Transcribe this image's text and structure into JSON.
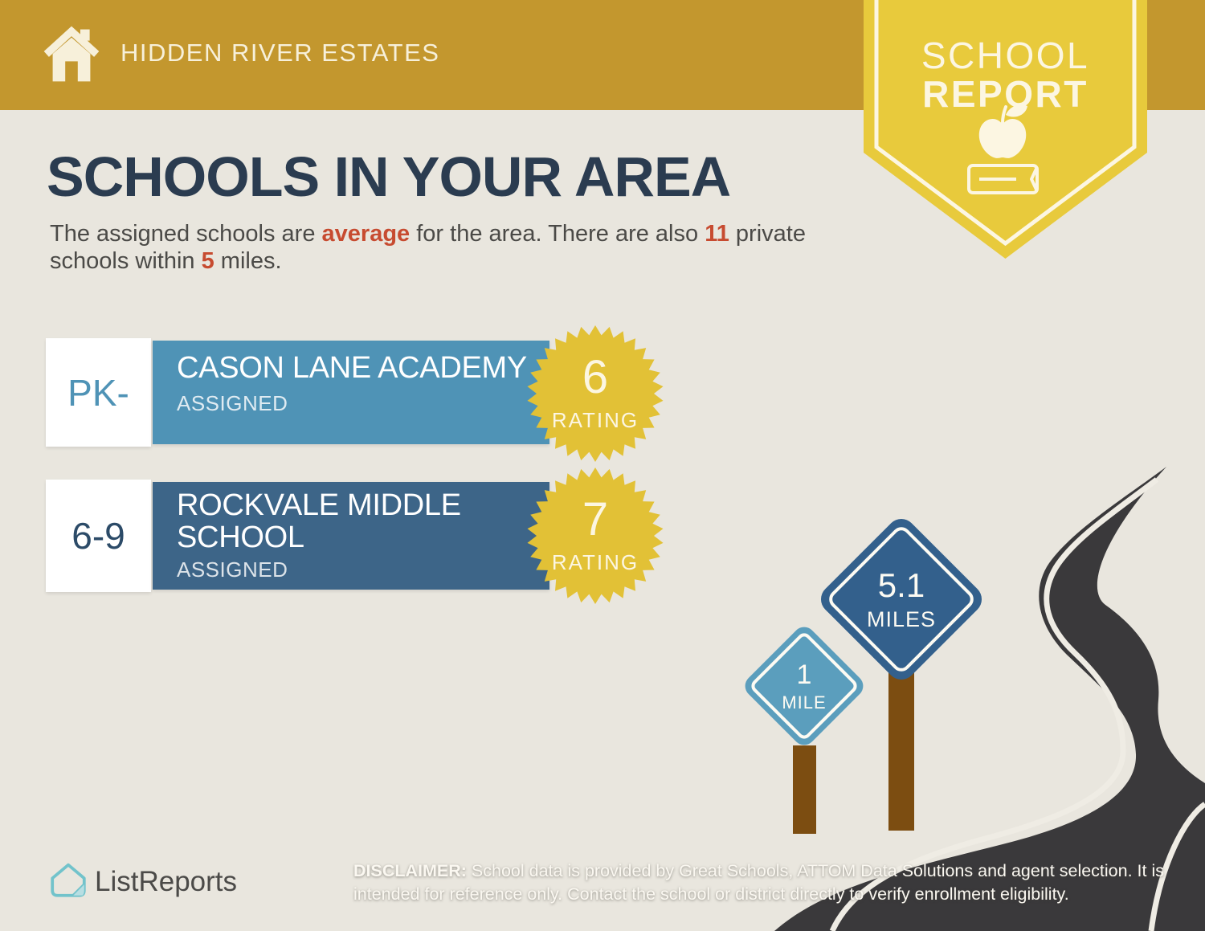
{
  "header": {
    "property_name": "HIDDEN RIVER ESTATES"
  },
  "report_badge": {
    "title_line1": "SCHOOL",
    "title_line2": "REPORT"
  },
  "main": {
    "title": "SCHOOLS IN YOUR AREA",
    "subtitle_parts": {
      "p1": "The assigned schools are ",
      "h1": "average",
      "p2": " for the area. There are also ",
      "h2": "11",
      "p3": " private schools within ",
      "h3": "5",
      "p4": " miles."
    }
  },
  "schools": [
    {
      "grades": "PK-",
      "name": "CASON LANE ACADEMY",
      "status": "ASSIGNED",
      "rating": "6",
      "rating_label": "RATING"
    },
    {
      "grades": "6-9",
      "name": "ROCKVALE MIDDLE SCHOOL",
      "status": "ASSIGNED",
      "rating": "7",
      "rating_label": "RATING"
    }
  ],
  "distance_signs": [
    {
      "value": "1",
      "unit": "MILE"
    },
    {
      "value": "5.1",
      "unit": "MILES"
    }
  ],
  "footer": {
    "brand": "ListReports",
    "disclaimer_label": "DISCLAIMER:",
    "disclaimer_text": "School data is provided by Great Schools, ATTOM Data Solutions and agent selection. It is intended for reference only. Contact the school or district directly to verify enrollment eligibility."
  },
  "colors": {
    "banner_gold": "#c3972e",
    "badge_yellow": "#e8ca3c",
    "starburst_yellow": "#e2c136",
    "background_cream": "#e9e6de",
    "title_navy": "#2b3c50",
    "accent_red": "#c74b30",
    "school1_blue": "#4f93b6",
    "school2_blue": "#3d6588",
    "sign_light_blue": "#5b9ebd",
    "sign_dark_blue": "#33608c",
    "road_charcoal": "#3a393b",
    "post_brown": "#7c4d11",
    "logo_teal": "#72c3cb"
  }
}
